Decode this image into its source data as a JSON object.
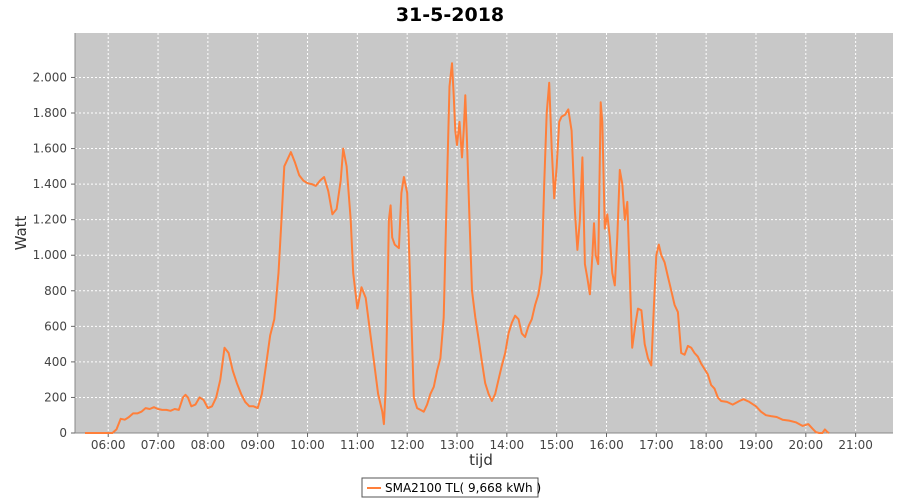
{
  "chart_data": {
    "type": "line",
    "title": "31-5-2018",
    "xlabel": "tijd",
    "ylabel": "Watt",
    "x_range": [
      "05:20",
      "21:45"
    ],
    "ylim": [
      0,
      2250
    ],
    "y_ticks": [
      0,
      200,
      400,
      600,
      800,
      1000,
      1200,
      1400,
      1600,
      1800,
      2000
    ],
    "y_tick_labels": [
      "0",
      "200",
      "400",
      "600",
      "800",
      "1.000",
      "1.200",
      "1.400",
      "1.600",
      "1.800",
      "2.000"
    ],
    "x_ticks": [
      "06:00",
      "07:00",
      "08:00",
      "09:00",
      "10:00",
      "11:00",
      "12:00",
      "13:00",
      "14:00",
      "15:00",
      "16:00",
      "17:00",
      "18:00",
      "19:00",
      "20:00",
      "21:00"
    ],
    "grid": true,
    "background": "#c8c8c8",
    "legend_position": "bottom-center",
    "series": [
      {
        "name": "SMA2100 TL( 9,668 kWh )",
        "color": "#ff7f3a",
        "points": [
          [
            "05:32",
            0
          ],
          [
            "05:45",
            0
          ],
          [
            "05:55",
            0
          ],
          [
            "06:05",
            0
          ],
          [
            "06:10",
            20
          ],
          [
            "06:15",
            80
          ],
          [
            "06:20",
            75
          ],
          [
            "06:25",
            90
          ],
          [
            "06:30",
            110
          ],
          [
            "06:35",
            110
          ],
          [
            "06:40",
            120
          ],
          [
            "06:45",
            140
          ],
          [
            "06:50",
            135
          ],
          [
            "06:55",
            145
          ],
          [
            "07:00",
            135
          ],
          [
            "07:05",
            130
          ],
          [
            "07:10",
            130
          ],
          [
            "07:15",
            125
          ],
          [
            "07:20",
            135
          ],
          [
            "07:25",
            130
          ],
          [
            "07:30",
            200
          ],
          [
            "07:33",
            215
          ],
          [
            "07:36",
            200
          ],
          [
            "07:40",
            150
          ],
          [
            "07:45",
            160
          ],
          [
            "07:50",
            200
          ],
          [
            "07:55",
            185
          ],
          [
            "08:00",
            140
          ],
          [
            "08:05",
            150
          ],
          [
            "08:10",
            200
          ],
          [
            "08:15",
            300
          ],
          [
            "08:20",
            480
          ],
          [
            "08:25",
            450
          ],
          [
            "08:30",
            350
          ],
          [
            "08:35",
            280
          ],
          [
            "08:40",
            220
          ],
          [
            "08:45",
            175
          ],
          [
            "08:50",
            150
          ],
          [
            "08:55",
            150
          ],
          [
            "09:00",
            140
          ],
          [
            "09:05",
            220
          ],
          [
            "09:10",
            380
          ],
          [
            "09:15",
            550
          ],
          [
            "09:20",
            640
          ],
          [
            "09:25",
            900
          ],
          [
            "09:28",
            1150
          ],
          [
            "09:32",
            1500
          ],
          [
            "09:36",
            1540
          ],
          [
            "09:40",
            1580
          ],
          [
            "09:45",
            1520
          ],
          [
            "09:50",
            1450
          ],
          [
            "09:55",
            1420
          ],
          [
            "10:00",
            1405
          ],
          [
            "10:05",
            1400
          ],
          [
            "10:10",
            1390
          ],
          [
            "10:15",
            1420
          ],
          [
            "10:20",
            1440
          ],
          [
            "10:25",
            1360
          ],
          [
            "10:30",
            1230
          ],
          [
            "10:35",
            1260
          ],
          [
            "10:40",
            1420
          ],
          [
            "10:43",
            1600
          ],
          [
            "10:47",
            1500
          ],
          [
            "10:52",
            1200
          ],
          [
            "10:55",
            900
          ],
          [
            "11:00",
            700
          ],
          [
            "11:05",
            820
          ],
          [
            "11:10",
            760
          ],
          [
            "11:15",
            580
          ],
          [
            "11:20",
            400
          ],
          [
            "11:25",
            220
          ],
          [
            "11:30",
            120
          ],
          [
            "11:32",
            50
          ],
          [
            "11:34",
            240
          ],
          [
            "11:36",
            700
          ],
          [
            "11:38",
            1200
          ],
          [
            "11:40",
            1280
          ],
          [
            "11:42",
            1100
          ],
          [
            "11:45",
            1060
          ],
          [
            "11:50",
            1040
          ],
          [
            "11:53",
            1350
          ],
          [
            "11:56",
            1440
          ],
          [
            "12:00",
            1350
          ],
          [
            "12:04",
            800
          ],
          [
            "12:08",
            200
          ],
          [
            "12:12",
            140
          ],
          [
            "12:16",
            130
          ],
          [
            "12:20",
            120
          ],
          [
            "12:24",
            160
          ],
          [
            "12:28",
            220
          ],
          [
            "12:32",
            260
          ],
          [
            "12:36",
            350
          ],
          [
            "12:40",
            420
          ],
          [
            "12:44",
            650
          ],
          [
            "12:48",
            1400
          ],
          [
            "12:51",
            1950
          ],
          [
            "12:54",
            2080
          ],
          [
            "12:56",
            1900
          ],
          [
            "12:58",
            1700
          ],
          [
            "13:00",
            1620
          ],
          [
            "13:03",
            1750
          ],
          [
            "13:06",
            1550
          ],
          [
            "13:08",
            1700
          ],
          [
            "13:10",
            1900
          ],
          [
            "13:12",
            1640
          ],
          [
            "13:15",
            1200
          ],
          [
            "13:18",
            800
          ],
          [
            "13:22",
            650
          ],
          [
            "13:26",
            530
          ],
          [
            "13:30",
            400
          ],
          [
            "13:34",
            280
          ],
          [
            "13:38",
            220
          ],
          [
            "13:42",
            180
          ],
          [
            "13:46",
            220
          ],
          [
            "13:50",
            300
          ],
          [
            "13:54",
            380
          ],
          [
            "13:58",
            450
          ],
          [
            "14:02",
            560
          ],
          [
            "14:06",
            620
          ],
          [
            "14:10",
            660
          ],
          [
            "14:14",
            640
          ],
          [
            "14:18",
            560
          ],
          [
            "14:22",
            540
          ],
          [
            "14:26",
            600
          ],
          [
            "14:30",
            640
          ],
          [
            "14:34",
            720
          ],
          [
            "14:38",
            780
          ],
          [
            "14:42",
            900
          ],
          [
            "14:45",
            1400
          ],
          [
            "14:48",
            1800
          ],
          [
            "14:51",
            1970
          ],
          [
            "14:54",
            1600
          ],
          [
            "14:57",
            1320
          ],
          [
            "15:00",
            1500
          ],
          [
            "15:03",
            1750
          ],
          [
            "15:06",
            1780
          ],
          [
            "15:10",
            1790
          ],
          [
            "15:14",
            1820
          ],
          [
            "15:18",
            1700
          ],
          [
            "15:22",
            1250
          ],
          [
            "15:25",
            1030
          ],
          [
            "15:28",
            1200
          ],
          [
            "15:31",
            1550
          ],
          [
            "15:34",
            950
          ],
          [
            "15:37",
            870
          ],
          [
            "15:40",
            780
          ],
          [
            "15:43",
            1000
          ],
          [
            "15:45",
            1180
          ],
          [
            "15:47",
            1000
          ],
          [
            "15:50",
            950
          ],
          [
            "15:53",
            1860
          ],
          [
            "15:55",
            1750
          ],
          [
            "15:58",
            1150
          ],
          [
            "16:01",
            1230
          ],
          [
            "16:04",
            1100
          ],
          [
            "16:07",
            900
          ],
          [
            "16:10",
            830
          ],
          [
            "16:13",
            1100
          ],
          [
            "16:16",
            1480
          ],
          [
            "16:19",
            1400
          ],
          [
            "16:22",
            1200
          ],
          [
            "16:25",
            1300
          ],
          [
            "16:28",
            900
          ],
          [
            "16:31",
            480
          ],
          [
            "16:35",
            620
          ],
          [
            "16:38",
            700
          ],
          [
            "16:42",
            690
          ],
          [
            "16:46",
            500
          ],
          [
            "16:50",
            420
          ],
          [
            "16:54",
            380
          ],
          [
            "16:57",
            700
          ],
          [
            "17:00",
            1000
          ],
          [
            "17:03",
            1060
          ],
          [
            "17:06",
            1000
          ],
          [
            "17:10",
            960
          ],
          [
            "17:14",
            880
          ],
          [
            "17:18",
            800
          ],
          [
            "17:22",
            720
          ],
          [
            "17:26",
            680
          ],
          [
            "17:30",
            450
          ],
          [
            "17:34",
            440
          ],
          [
            "17:38",
            490
          ],
          [
            "17:42",
            480
          ],
          [
            "17:46",
            450
          ],
          [
            "17:50",
            430
          ],
          [
            "17:54",
            390
          ],
          [
            "17:58",
            360
          ],
          [
            "18:02",
            330
          ],
          [
            "18:06",
            270
          ],
          [
            "18:10",
            250
          ],
          [
            "18:14",
            200
          ],
          [
            "18:18",
            180
          ],
          [
            "18:25",
            175
          ],
          [
            "18:32",
            160
          ],
          [
            "18:40",
            180
          ],
          [
            "18:45",
            190
          ],
          [
            "18:52",
            175
          ],
          [
            "19:00",
            150
          ],
          [
            "19:06",
            120
          ],
          [
            "19:12",
            100
          ],
          [
            "19:18",
            95
          ],
          [
            "19:25",
            90
          ],
          [
            "19:32",
            75
          ],
          [
            "19:40",
            70
          ],
          [
            "19:48",
            60
          ],
          [
            "19:56",
            40
          ],
          [
            "20:03",
            50
          ],
          [
            "20:08",
            25
          ],
          [
            "20:12",
            5
          ],
          [
            "20:16",
            0
          ],
          [
            "20:20",
            0
          ],
          [
            "20:23",
            20
          ],
          [
            "20:26",
            5
          ],
          [
            "20:28",
            0
          ]
        ]
      }
    ]
  }
}
